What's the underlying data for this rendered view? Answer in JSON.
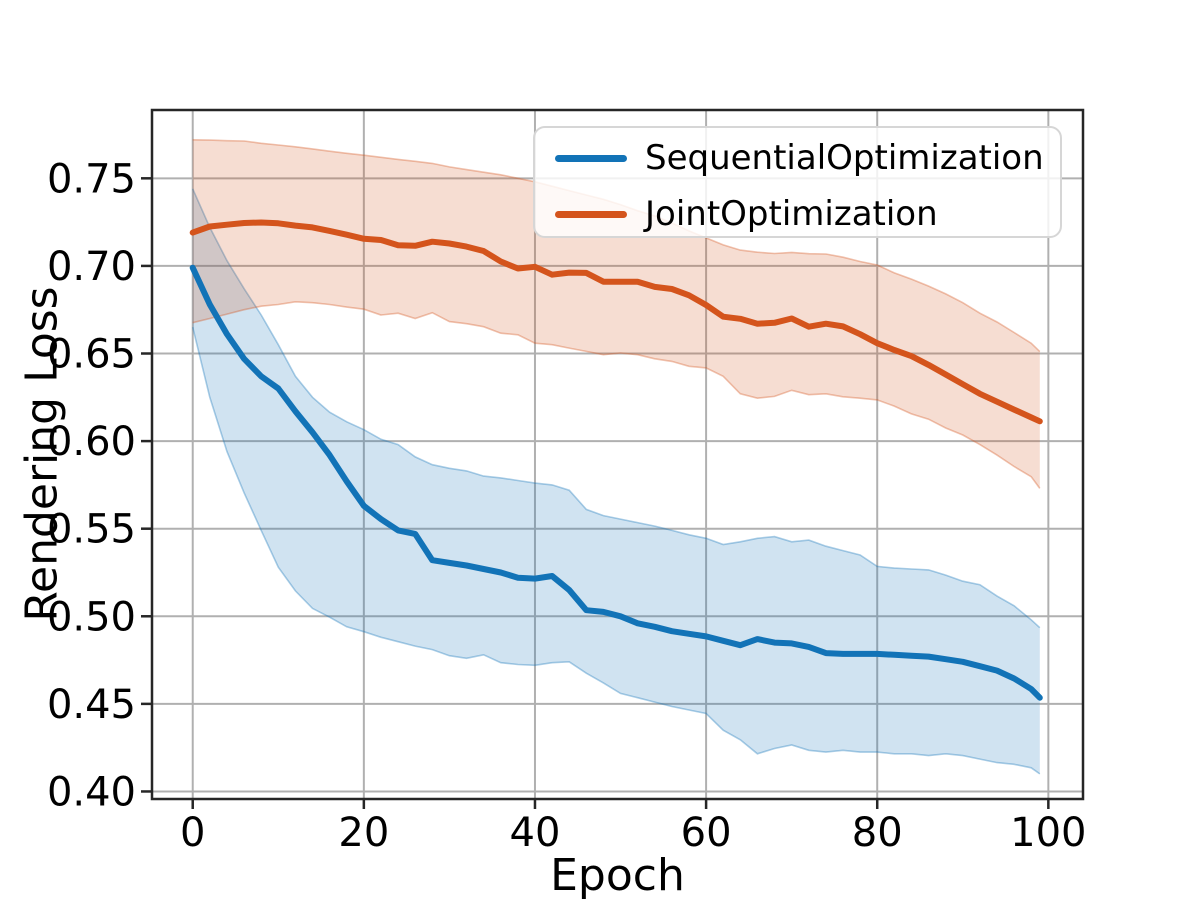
{
  "colors": {
    "blue_line": "#1273b7",
    "orange_line": "#d4541c",
    "blue_band": "rgba(18,115,183,0.20)",
    "orange_band": "rgba(212,84,28,0.20)",
    "blue_band_edge": "rgba(18,115,183,0.35)",
    "orange_band_edge": "rgba(212,84,28,0.35)",
    "grid": "#b0b0b0",
    "spine": "#262626",
    "text": "#000000"
  },
  "legend": {
    "items": [
      {
        "label": "SequentialOptimization",
        "color": "#1273b7"
      },
      {
        "label": "JointOptimization",
        "color": "#d4541c"
      }
    ]
  },
  "chart_data": {
    "type": "line",
    "title": "",
    "xlabel": "Epoch",
    "ylabel": "Rendering Loss",
    "grid": true,
    "legend_position": "upper right",
    "xlim": [
      -4.76,
      104.05
    ],
    "ylim": [
      0.3957,
      0.789
    ],
    "xticks": {
      "values": [
        0,
        20,
        40,
        60,
        80,
        100
      ],
      "labels": [
        "0",
        "20",
        "40",
        "60",
        "80",
        "100"
      ]
    },
    "yticks": {
      "values": [
        0.4,
        0.45,
        0.5,
        0.55,
        0.6,
        0.65,
        0.7,
        0.75
      ],
      "labels": [
        "0.40",
        "0.45",
        "0.50",
        "0.55",
        "0.60",
        "0.65",
        "0.70",
        "0.75"
      ]
    },
    "x": [
      0,
      2,
      4,
      6,
      8,
      10,
      12,
      14,
      16,
      18,
      20,
      22,
      24,
      26,
      28,
      30,
      32,
      34,
      36,
      38,
      40,
      42,
      44,
      46,
      48,
      50,
      52,
      54,
      56,
      58,
      60,
      62,
      64,
      66,
      68,
      70,
      72,
      74,
      76,
      78,
      80,
      82,
      84,
      86,
      88,
      90,
      92,
      94,
      96,
      98,
      99
    ],
    "series": [
      {
        "name": "SequentialOptimization",
        "color": "#1273b7",
        "band_color": "rgba(18,115,183,0.20)",
        "band_edge_color": "rgba(18,115,183,0.35)",
        "mean": [
          0.699,
          0.678,
          0.661,
          0.647,
          0.637,
          0.63,
          0.617,
          0.605,
          0.592,
          0.577,
          0.563,
          0.5555,
          0.549,
          0.547,
          0.532,
          0.5305,
          0.529,
          0.527,
          0.525,
          0.522,
          0.5215,
          0.523,
          0.515,
          0.5035,
          0.5025,
          0.5,
          0.496,
          0.494,
          0.4915,
          0.49,
          0.4885,
          0.486,
          0.4835,
          0.487,
          0.485,
          0.4845,
          0.4825,
          0.479,
          0.4785,
          0.4785,
          0.4785,
          0.478,
          0.4775,
          0.477,
          0.4755,
          0.474,
          0.4715,
          0.469,
          0.4645,
          0.4585,
          0.4535
        ],
        "upper": [
          0.744,
          0.722,
          0.703,
          0.687,
          0.672,
          0.655,
          0.637,
          0.625,
          0.6165,
          0.611,
          0.6065,
          0.601,
          0.598,
          0.591,
          0.5865,
          0.5845,
          0.583,
          0.58,
          0.579,
          0.5775,
          0.576,
          0.575,
          0.572,
          0.561,
          0.5575,
          0.5555,
          0.5535,
          0.5515,
          0.549,
          0.5465,
          0.5445,
          0.541,
          0.5425,
          0.5445,
          0.5455,
          0.5425,
          0.5435,
          0.54,
          0.5375,
          0.535,
          0.5285,
          0.5275,
          0.527,
          0.5265,
          0.5235,
          0.52,
          0.518,
          0.5115,
          0.506,
          0.498,
          0.4935
        ],
        "lower": [
          0.665,
          0.625,
          0.594,
          0.5705,
          0.549,
          0.528,
          0.5145,
          0.5045,
          0.4995,
          0.494,
          0.4912,
          0.488,
          0.4855,
          0.483,
          0.481,
          0.4775,
          0.476,
          0.478,
          0.4735,
          0.4725,
          0.472,
          0.4735,
          0.474,
          0.4675,
          0.462,
          0.456,
          0.4535,
          0.451,
          0.4485,
          0.4465,
          0.4445,
          0.435,
          0.4295,
          0.4215,
          0.4245,
          0.4265,
          0.4235,
          0.4225,
          0.4235,
          0.4225,
          0.4225,
          0.4215,
          0.4215,
          0.4205,
          0.4215,
          0.4205,
          0.4185,
          0.4165,
          0.4155,
          0.4135,
          0.41
        ]
      },
      {
        "name": "JointOptimization",
        "color": "#d4541c",
        "band_color": "rgba(212,84,28,0.20)",
        "band_edge_color": "rgba(212,84,28,0.35)",
        "mean": [
          0.719,
          0.7225,
          0.7235,
          0.7245,
          0.7248,
          0.7243,
          0.723,
          0.722,
          0.72,
          0.7178,
          0.7155,
          0.7148,
          0.7118,
          0.7115,
          0.7138,
          0.7128,
          0.711,
          0.7085,
          0.7025,
          0.6985,
          0.6995,
          0.695,
          0.6962,
          0.696,
          0.691,
          0.691,
          0.691,
          0.688,
          0.6868,
          0.6832,
          0.6777,
          0.671,
          0.6698,
          0.667,
          0.6675,
          0.67,
          0.6653,
          0.667,
          0.6655,
          0.661,
          0.6559,
          0.652,
          0.6485,
          0.6435,
          0.638,
          0.6325,
          0.627,
          0.6225,
          0.618,
          0.6135,
          0.6113
        ],
        "upper": [
          0.772,
          0.7718,
          0.7715,
          0.7713,
          0.77,
          0.769,
          0.768,
          0.7668,
          0.7655,
          0.7643,
          0.7632,
          0.762,
          0.7608,
          0.7597,
          0.7585,
          0.7565,
          0.755,
          0.7535,
          0.752,
          0.75,
          0.748,
          0.7455,
          0.743,
          0.7405,
          0.738,
          0.735,
          0.7315,
          0.7285,
          0.7245,
          0.72,
          0.716,
          0.712,
          0.709,
          0.7078,
          0.7071,
          0.7077,
          0.707,
          0.7068,
          0.705,
          0.7025,
          0.7005,
          0.696,
          0.6925,
          0.6885,
          0.684,
          0.679,
          0.673,
          0.668,
          0.662,
          0.6559,
          0.6511
        ],
        "lower": [
          0.6676,
          0.67,
          0.6725,
          0.675,
          0.677,
          0.678,
          0.6795,
          0.679,
          0.678,
          0.6765,
          0.6753,
          0.672,
          0.673,
          0.67,
          0.6733,
          0.6682,
          0.667,
          0.6653,
          0.6616,
          0.6607,
          0.6559,
          0.655,
          0.6531,
          0.6512,
          0.6493,
          0.6503,
          0.6493,
          0.647,
          0.6455,
          0.6427,
          0.6418,
          0.637,
          0.627,
          0.6245,
          0.6255,
          0.629,
          0.6265,
          0.627,
          0.6253,
          0.6245,
          0.6235,
          0.62,
          0.6155,
          0.6125,
          0.6075,
          0.6035,
          0.598,
          0.592,
          0.5855,
          0.5797,
          0.573
        ]
      }
    ]
  }
}
